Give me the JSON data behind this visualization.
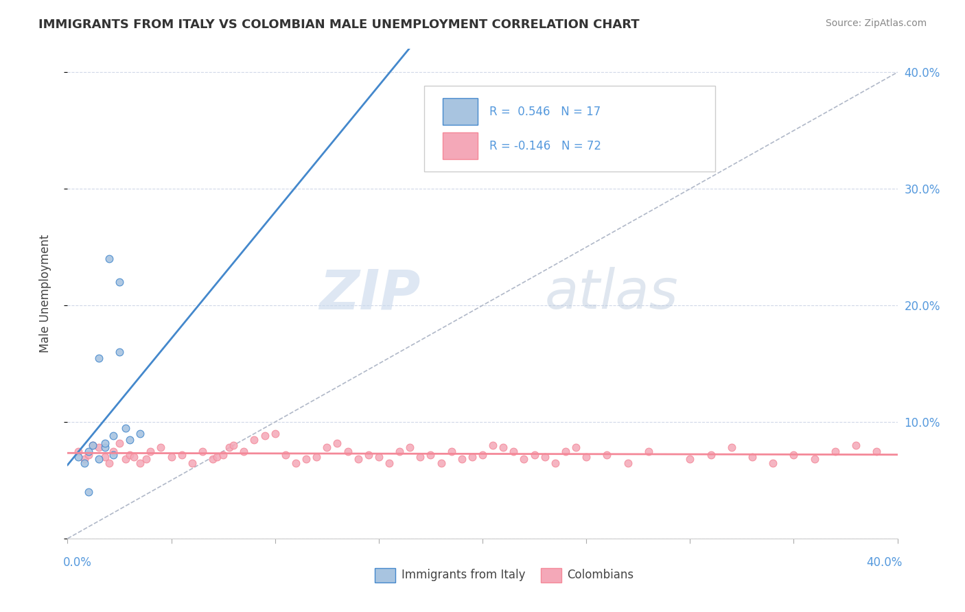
{
  "title": "IMMIGRANTS FROM ITALY VS COLOMBIAN MALE UNEMPLOYMENT CORRELATION CHART",
  "source": "Source: ZipAtlas.com",
  "ylabel": "Male Unemployment",
  "legend_italy": "Immigrants from Italy",
  "legend_colombians": "Colombians",
  "r_italy": 0.546,
  "n_italy": 17,
  "r_colombians": -0.146,
  "n_colombians": 72,
  "italy_color": "#a8c4e0",
  "colombian_color": "#f4a8b8",
  "italy_line_color": "#4488cc",
  "colombian_line_color": "#f48898",
  "dashed_line_color": "#b0b8c8",
  "watermark_zip": "ZIP",
  "watermark_atlas": "atlas",
  "italy_scatter_x": [
    0.005,
    0.008,
    0.01,
    0.012,
    0.015,
    0.02,
    0.025,
    0.03,
    0.035,
    0.025,
    0.028,
    0.018,
    0.022,
    0.01,
    0.015,
    0.018,
    0.022
  ],
  "italy_scatter_y": [
    0.07,
    0.065,
    0.075,
    0.08,
    0.155,
    0.24,
    0.22,
    0.085,
    0.09,
    0.16,
    0.095,
    0.078,
    0.072,
    0.04,
    0.068,
    0.082,
    0.088
  ],
  "colombian_scatter_x": [
    0.005,
    0.008,
    0.01,
    0.012,
    0.015,
    0.018,
    0.02,
    0.022,
    0.025,
    0.028,
    0.03,
    0.032,
    0.035,
    0.038,
    0.04,
    0.045,
    0.05,
    0.055,
    0.06,
    0.065,
    0.07,
    0.072,
    0.075,
    0.078,
    0.08,
    0.085,
    0.09,
    0.095,
    0.1,
    0.105,
    0.11,
    0.115,
    0.12,
    0.125,
    0.13,
    0.135,
    0.14,
    0.145,
    0.15,
    0.155,
    0.16,
    0.165,
    0.17,
    0.175,
    0.18,
    0.185,
    0.19,
    0.195,
    0.2,
    0.205,
    0.21,
    0.215,
    0.22,
    0.225,
    0.23,
    0.235,
    0.24,
    0.245,
    0.25,
    0.26,
    0.27,
    0.28,
    0.3,
    0.31,
    0.32,
    0.33,
    0.34,
    0.35,
    0.36,
    0.37,
    0.38,
    0.39
  ],
  "colombian_scatter_y": [
    0.075,
    0.068,
    0.072,
    0.08,
    0.078,
    0.07,
    0.065,
    0.075,
    0.082,
    0.068,
    0.072,
    0.07,
    0.065,
    0.068,
    0.075,
    0.078,
    0.07,
    0.072,
    0.065,
    0.075,
    0.068,
    0.07,
    0.072,
    0.078,
    0.08,
    0.075,
    0.085,
    0.088,
    0.09,
    0.072,
    0.065,
    0.068,
    0.07,
    0.078,
    0.082,
    0.075,
    0.068,
    0.072,
    0.07,
    0.065,
    0.075,
    0.078,
    0.07,
    0.072,
    0.065,
    0.075,
    0.068,
    0.07,
    0.072,
    0.08,
    0.078,
    0.075,
    0.068,
    0.072,
    0.07,
    0.065,
    0.075,
    0.078,
    0.07,
    0.072,
    0.065,
    0.075,
    0.068,
    0.072,
    0.078,
    0.07,
    0.065,
    0.072,
    0.068,
    0.075,
    0.08,
    0.075
  ]
}
